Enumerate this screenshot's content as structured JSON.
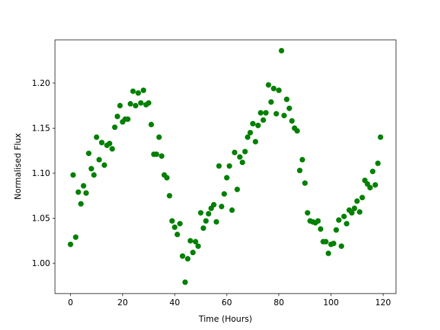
{
  "chart_data": {
    "type": "scatter",
    "xlabel": "Time (Hours)",
    "ylabel": "Normalised Flux",
    "color": "#008000",
    "x": [
      0,
      1,
      2,
      3,
      4,
      5,
      6,
      7,
      8,
      9,
      10,
      11,
      12,
      13,
      14,
      15,
      16,
      17,
      18,
      19,
      20,
      21,
      22,
      23,
      24,
      25,
      26,
      27,
      28,
      29,
      30,
      31,
      32,
      33,
      34,
      35,
      36,
      37,
      38,
      39,
      40,
      41,
      42,
      43,
      44,
      45,
      46,
      47,
      48,
      49,
      50,
      51,
      52,
      53,
      54,
      55,
      56,
      57,
      58,
      59,
      60,
      61,
      62,
      63,
      64,
      65,
      66,
      67,
      68,
      69,
      70,
      71,
      72,
      73,
      74,
      75,
      76,
      77,
      78,
      79,
      80,
      81,
      82,
      83,
      84,
      85,
      86,
      87,
      88,
      89,
      90,
      91,
      92,
      93,
      94,
      95,
      96,
      97,
      98,
      99,
      100,
      101,
      102,
      103,
      104,
      105,
      106,
      107,
      108,
      109,
      110,
      111,
      112,
      113,
      114,
      115,
      116,
      117,
      118,
      119
    ],
    "values": [
      1.021,
      1.098,
      1.029,
      1.079,
      1.066,
      1.086,
      1.078,
      1.122,
      1.105,
      1.098,
      1.14,
      1.115,
      1.134,
      1.109,
      1.131,
      1.133,
      1.127,
      1.151,
      1.163,
      1.175,
      1.157,
      1.16,
      1.16,
      1.177,
      1.191,
      1.175,
      1.189,
      1.178,
      1.192,
      1.176,
      1.178,
      1.154,
      1.121,
      1.121,
      1.14,
      1.119,
      1.098,
      1.095,
      1.075,
      1.047,
      1.04,
      1.032,
      1.044,
      1.008,
      0.979,
      1.005,
      1.025,
      1.012,
      1.024,
      1.019,
      1.056,
      1.039,
      1.047,
      1.055,
      1.061,
      1.065,
      1.046,
      1.108,
      1.063,
      1.077,
      1.095,
      1.108,
      1.059,
      1.123,
      1.082,
      1.118,
      1.112,
      1.124,
      1.14,
      1.145,
      1.155,
      1.135,
      1.153,
      1.167,
      1.159,
      1.167,
      1.198,
      1.179,
      1.194,
      1.166,
      1.192,
      1.236,
      1.164,
      1.182,
      1.172,
      1.158,
      1.15,
      1.147,
      1.103,
      1.115,
      1.089,
      1.056,
      1.047,
      1.046,
      1.045,
      1.047,
      1.038,
      1.024,
      1.024,
      1.011,
      1.021,
      1.022,
      1.037,
      1.048,
      1.019,
      1.052,
      1.044,
      1.059,
      1.056,
      1.061,
      1.069,
      1.057,
      1.073,
      1.092,
      1.088,
      1.084,
      1.102,
      1.087,
      1.111,
      1.14
    ],
    "xlim": [
      -5.95,
      124.95
    ],
    "xticks": [
      0,
      20,
      40,
      60,
      80,
      100,
      120
    ],
    "ylim": [
      0.9664,
      1.248
    ],
    "yticks": [
      {
        "value": 1.0,
        "label": "1.00"
      },
      {
        "value": 1.05,
        "label": "1.05"
      },
      {
        "value": 1.1,
        "label": "1.10"
      },
      {
        "value": 1.15,
        "label": "1.15"
      },
      {
        "value": 1.2,
        "label": "1.20"
      }
    ]
  }
}
